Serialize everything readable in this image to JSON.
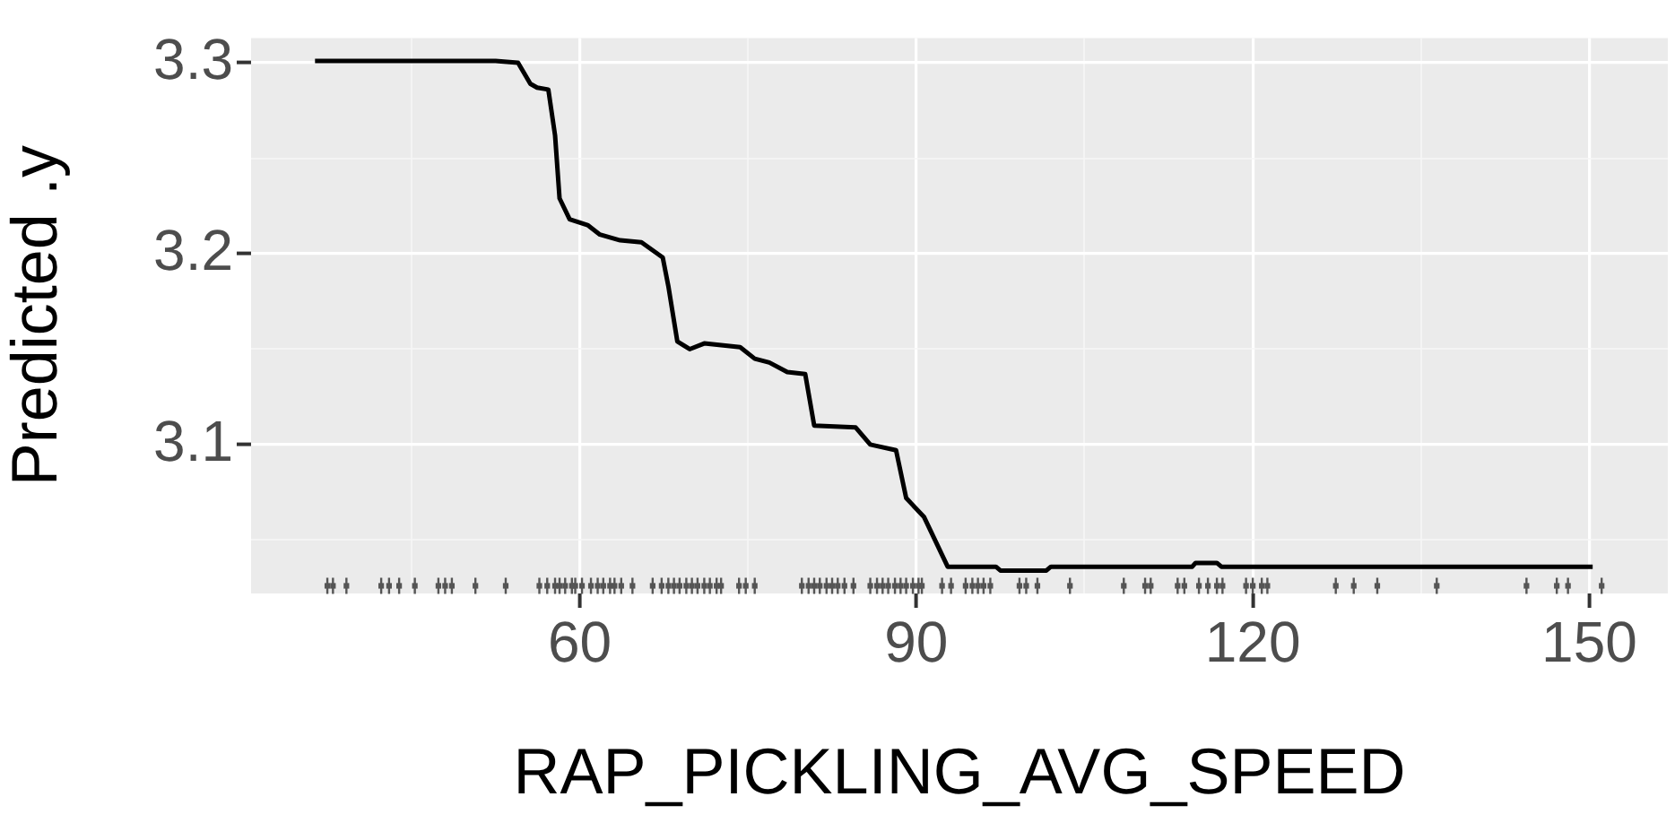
{
  "chart_data": {
    "type": "line",
    "xlabel": "RAP_PICKLING_AVG_SPEED",
    "ylabel": "Predicted .y",
    "xlim": [
      30.7,
      157.0
    ],
    "xticks": [
      {
        "value": 45,
        "label": null
      },
      60,
      {
        "value": 75,
        "label": null
      },
      90,
      {
        "value": 105,
        "label": null
      },
      120,
      {
        "value": 135,
        "label": null
      },
      150
    ],
    "ylim": [
      3.022,
      3.313
    ],
    "yticks": [
      {
        "value": 3.05,
        "label": null
      },
      3.1,
      {
        "value": 3.15,
        "label": null
      },
      3.2,
      {
        "value": 3.25,
        "label": null
      },
      3.3
    ],
    "grid": true,
    "legend": false,
    "series": [
      {
        "type": "line",
        "color": "#000000",
        "x": [
          36.4,
          52.5,
          54.5,
          55.6,
          56.2,
          57.2,
          57.8,
          58.2,
          59.1,
          60.7,
          61.8,
          63.6,
          65.5,
          67.4,
          67.9,
          68.7,
          69.8,
          71.1,
          74.3,
          75.6,
          76.9,
          78.5,
          80.1,
          80.9,
          84.6,
          85.9,
          88.2,
          89.1,
          90.7,
          92.8,
          97.1,
          97.5,
          101.6,
          102.0,
          114.6,
          114.9,
          116.8,
          117.2,
          150.3
        ],
        "values": [
          3.301,
          3.301,
          3.3,
          3.289,
          3.287,
          3.286,
          3.262,
          3.229,
          3.218,
          3.215,
          3.21,
          3.207,
          3.206,
          3.198,
          3.183,
          3.154,
          3.15,
          3.153,
          3.151,
          3.145,
          3.143,
          3.138,
          3.137,
          3.11,
          3.109,
          3.1,
          3.097,
          3.072,
          3.062,
          3.036,
          3.036,
          3.034,
          3.034,
          3.036,
          3.036,
          3.038,
          3.038,
          3.036,
          3.036
        ]
      },
      {
        "type": "scatter",
        "color": "#555555",
        "x": [
          37.5,
          38.0,
          39.2,
          42.3,
          43.0,
          43.9,
          45.3,
          47.4,
          48.0,
          48.6,
          50.7,
          53.4,
          56.4,
          57.1,
          57.8,
          58.2,
          58.7,
          59.3,
          59.6,
          60.2,
          61.0,
          61.6,
          62.1,
          62.7,
          63.1,
          63.7,
          64.7,
          66.5,
          67.3,
          67.9,
          68.4,
          68.9,
          69.5,
          70.0,
          70.5,
          71.1,
          71.6,
          72.2,
          72.6,
          74.2,
          74.8,
          75.6,
          79.8,
          80.4,
          80.9,
          81.4,
          82.0,
          82.5,
          83.0,
          83.6,
          84.4,
          85.9,
          86.5,
          87.0,
          87.5,
          88.1,
          88.6,
          89.1,
          89.7,
          90.2,
          90.5,
          92.3,
          93.1,
          94.4,
          95.0,
          95.5,
          96.0,
          96.6,
          99.2,
          99.8,
          100.8,
          103.7,
          108.5,
          110.4,
          110.9,
          113.3,
          113.9,
          115.2,
          116.0,
          116.8,
          117.3,
          119.4,
          120.0,
          120.8,
          121.3,
          127.4,
          129.0,
          131.1,
          136.4,
          144.4,
          147.1,
          148.1,
          151.1
        ],
        "values": [
          3.026,
          3.026,
          3.026,
          3.026,
          3.026,
          3.026,
          3.026,
          3.026,
          3.026,
          3.026,
          3.026,
          3.026,
          3.026,
          3.026,
          3.026,
          3.026,
          3.026,
          3.026,
          3.026,
          3.026,
          3.026,
          3.026,
          3.026,
          3.026,
          3.026,
          3.026,
          3.026,
          3.026,
          3.026,
          3.026,
          3.026,
          3.026,
          3.026,
          3.026,
          3.026,
          3.026,
          3.026,
          3.026,
          3.026,
          3.026,
          3.026,
          3.026,
          3.026,
          3.026,
          3.026,
          3.026,
          3.026,
          3.026,
          3.026,
          3.026,
          3.026,
          3.026,
          3.026,
          3.026,
          3.026,
          3.026,
          3.026,
          3.026,
          3.026,
          3.026,
          3.026,
          3.026,
          3.026,
          3.026,
          3.026,
          3.026,
          3.026,
          3.026,
          3.026,
          3.026,
          3.026,
          3.026,
          3.026,
          3.026,
          3.026,
          3.026,
          3.026,
          3.026,
          3.026,
          3.026,
          3.026,
          3.026,
          3.026,
          3.026,
          3.026,
          3.026,
          3.026,
          3.026,
          3.026,
          3.026,
          3.026,
          3.026,
          3.026
        ]
      }
    ]
  }
}
